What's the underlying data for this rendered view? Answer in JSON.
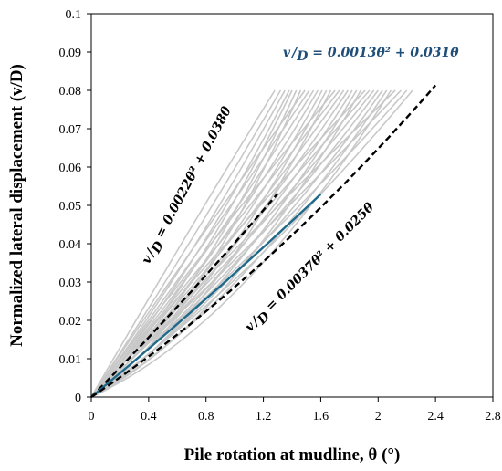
{
  "chart_data": {
    "type": "line",
    "title": "",
    "xlabel": "Pile rotation at mudline, θ (°)",
    "ylabel": "Normalized lateral displacement (v/D)",
    "xlim": [
      0,
      2.8
    ],
    "ylim": [
      0,
      0.1
    ],
    "x_ticks": [
      "0",
      "0.4",
      "0.8",
      "1.2",
      "1.6",
      "2",
      "2.4",
      "2.8"
    ],
    "y_ticks": [
      "0",
      "0.01",
      "0.02",
      "0.03",
      "0.04",
      "0.05",
      "0.06",
      "0.07",
      "0.08",
      "0.09",
      "0.1"
    ],
    "grid": false,
    "colors": {
      "mean": "#1f6a8a",
      "bounds": "#000000",
      "samples": "#c8c8c8"
    },
    "series": [
      {
        "role": "upper-bound",
        "style": "dashed",
        "a": 0.0022,
        "b": 0.038,
        "x_range": [
          0,
          1.3
        ]
      },
      {
        "role": "mean-fit",
        "style": "solid",
        "a": 0.0013,
        "b": 0.031,
        "x_range": [
          0,
          1.6
        ]
      },
      {
        "role": "lower-bound",
        "style": "dashed",
        "a": 0.0037,
        "b": 0.025,
        "x_range": [
          0,
          2.4
        ]
      }
    ],
    "sample_curves_end_x": [
      1.28,
      1.32,
      1.35,
      1.38,
      1.4,
      1.43,
      1.46,
      1.49,
      1.52,
      1.55,
      1.58,
      1.61,
      1.64,
      1.67,
      1.7,
      1.73,
      1.76,
      1.79,
      1.82,
      1.85,
      1.88,
      1.91,
      1.94,
      1.97,
      2.0,
      2.03,
      2.06,
      2.09,
      2.12,
      2.16,
      2.2,
      2.24
    ],
    "sample_curves_end_y": 0.08,
    "annotations": [
      {
        "target": "mean-fit",
        "lhs": "v",
        "den": "D",
        "rhs": " = 0.0013θ² + 0.031θ"
      },
      {
        "target": "upper-bound",
        "lhs": "v",
        "den": "D",
        "rhs": " = 0.0022θ² + 0.038θ"
      },
      {
        "target": "lower-bound",
        "lhs": "v",
        "den": "D",
        "rhs": " = 0.0037θ² + 0.025θ"
      }
    ]
  }
}
